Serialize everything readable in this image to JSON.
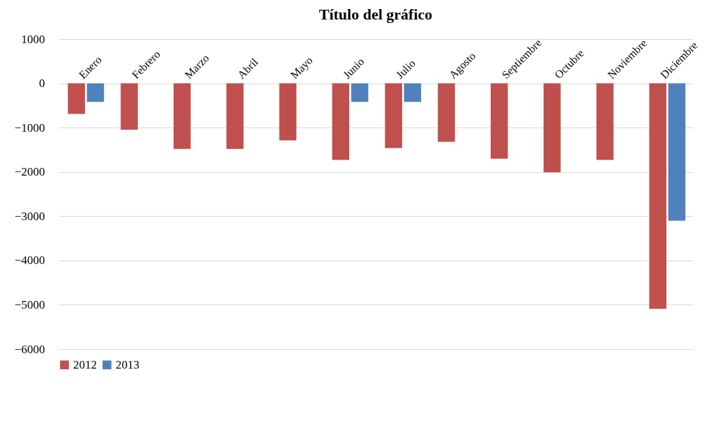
{
  "chart_data": {
    "type": "bar",
    "title": "Título del gráfico",
    "categories": [
      "Enero",
      "Febrero",
      "Marzo",
      "Abril",
      "Mayo",
      "Junio",
      "Julio",
      "Agosto",
      "Septiembre",
      "Octubre",
      "Noviembre",
      "Diciembre"
    ],
    "series": [
      {
        "name": "2012",
        "color": "#c0504d",
        "values": [
          -690,
          -1050,
          -1480,
          -1480,
          -1290,
          -1730,
          -1460,
          -1320,
          -1700,
          -2010,
          -1730,
          -5090
        ]
      },
      {
        "name": "2013",
        "color": "#4f81bd",
        "values": [
          -420,
          0,
          0,
          0,
          0,
          -420,
          -420,
          null,
          null,
          null,
          null,
          -3100
        ]
      }
    ],
    "ylim": [
      -6000,
      1000
    ],
    "yticks": [
      -6000,
      -5000,
      -4000,
      -3000,
      -2000,
      -1000,
      0,
      1000
    ],
    "grid": "y",
    "legend": "bottom"
  }
}
